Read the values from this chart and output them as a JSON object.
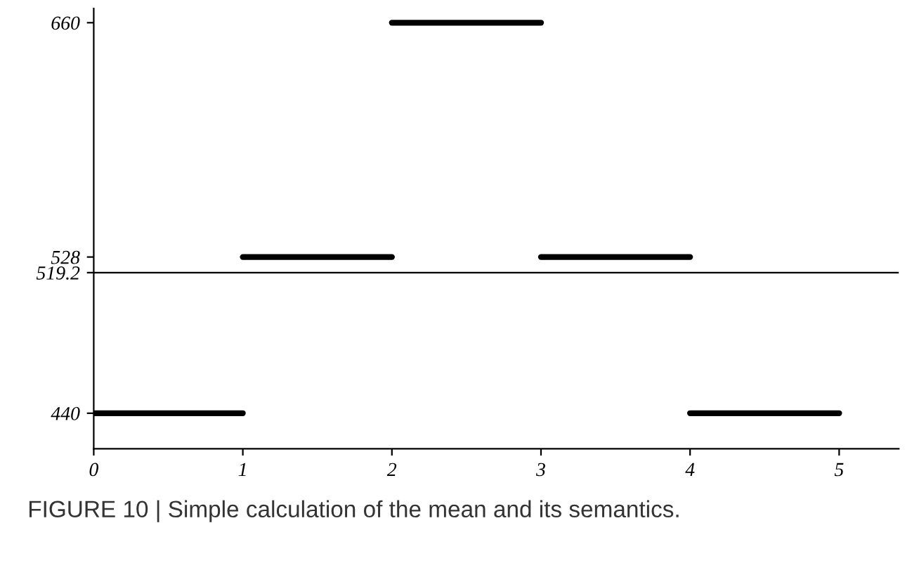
{
  "chart_data": {
    "type": "line",
    "series": [
      {
        "color": "#000000",
        "x": [
          0,
          1
        ],
        "values": [
          440,
          440
        ]
      },
      {
        "color": "#000000",
        "x": [
          1,
          2
        ],
        "values": [
          528,
          528
        ]
      },
      {
        "color": "#000000",
        "x": [
          2,
          3
        ],
        "values": [
          660,
          660
        ]
      },
      {
        "color": "#000000",
        "x": [
          3,
          4
        ],
        "values": [
          528,
          528
        ]
      },
      {
        "color": "#000000",
        "x": [
          4,
          5
        ],
        "values": [
          440,
          440
        ]
      }
    ],
    "xlim": [
      0,
      5.4
    ],
    "xticks": [
      0,
      1,
      2,
      3,
      4,
      5
    ],
    "ylim": [
      420,
      668
    ],
    "yticks": [
      440,
      519.2,
      528,
      660
    ],
    "ref_lines": [
      {
        "axis": "y",
        "value": 519.2,
        "color": "#000000"
      }
    ],
    "grid": false,
    "annotations": [
      "FIGURE 10 | Simple calculation of the mean and its semantics."
    ]
  }
}
